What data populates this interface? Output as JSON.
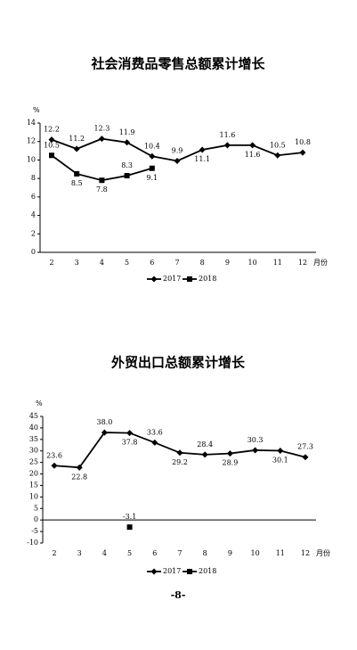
{
  "chart_data": [
    {
      "type": "line",
      "title": "社会消费品零售总额累计增长",
      "y_label": "%",
      "x_label": "月份",
      "categories": [
        "2",
        "3",
        "4",
        "5",
        "6",
        "7",
        "8",
        "9",
        "10",
        "11",
        "12"
      ],
      "ylim": [
        0,
        14
      ],
      "yticks": [
        0,
        2,
        4,
        6,
        8,
        10,
        12,
        14
      ],
      "series": [
        {
          "name": "2017",
          "color": "#000000",
          "marker": "diamond",
          "values": [
            12.2,
            11.2,
            12.3,
            11.9,
            10.4,
            9.9,
            11.1,
            11.6,
            11.6,
            10.5,
            10.8
          ]
        },
        {
          "name": "2018",
          "color": "#000000",
          "marker": "square",
          "values": [
            10.5,
            8.5,
            7.8,
            8.3,
            9.1,
            null,
            null,
            null,
            null,
            null,
            null
          ]
        }
      ]
    },
    {
      "type": "line",
      "title": "外贸出口总额累计增长",
      "y_label": "%",
      "x_label": "月份",
      "categories": [
        "2",
        "3",
        "4",
        "5",
        "6",
        "7",
        "8",
        "9",
        "10",
        "11",
        "12"
      ],
      "ylim": [
        -10,
        45
      ],
      "yticks": [
        -10,
        -5,
        0,
        5,
        10,
        15,
        20,
        25,
        30,
        35,
        40,
        45
      ],
      "series": [
        {
          "name": "2017",
          "color": "#000000",
          "marker": "diamond",
          "values": [
            23.6,
            22.8,
            38.0,
            37.8,
            33.6,
            29.2,
            28.4,
            28.9,
            30.3,
            30.1,
            27.3
          ],
          "value_labels": [
            "23.6",
            "22.8",
            "38.0",
            "37.8",
            "33.6",
            "29.2",
            "28.4",
            "28.9",
            "30.3",
            "30.1",
            "27.3"
          ]
        },
        {
          "name": "2018",
          "color": "#000000",
          "marker": "square",
          "values": [
            null,
            null,
            null,
            -3.1,
            null,
            null,
            null,
            null,
            null,
            null,
            null
          ]
        }
      ]
    }
  ],
  "page_number": "-8-"
}
